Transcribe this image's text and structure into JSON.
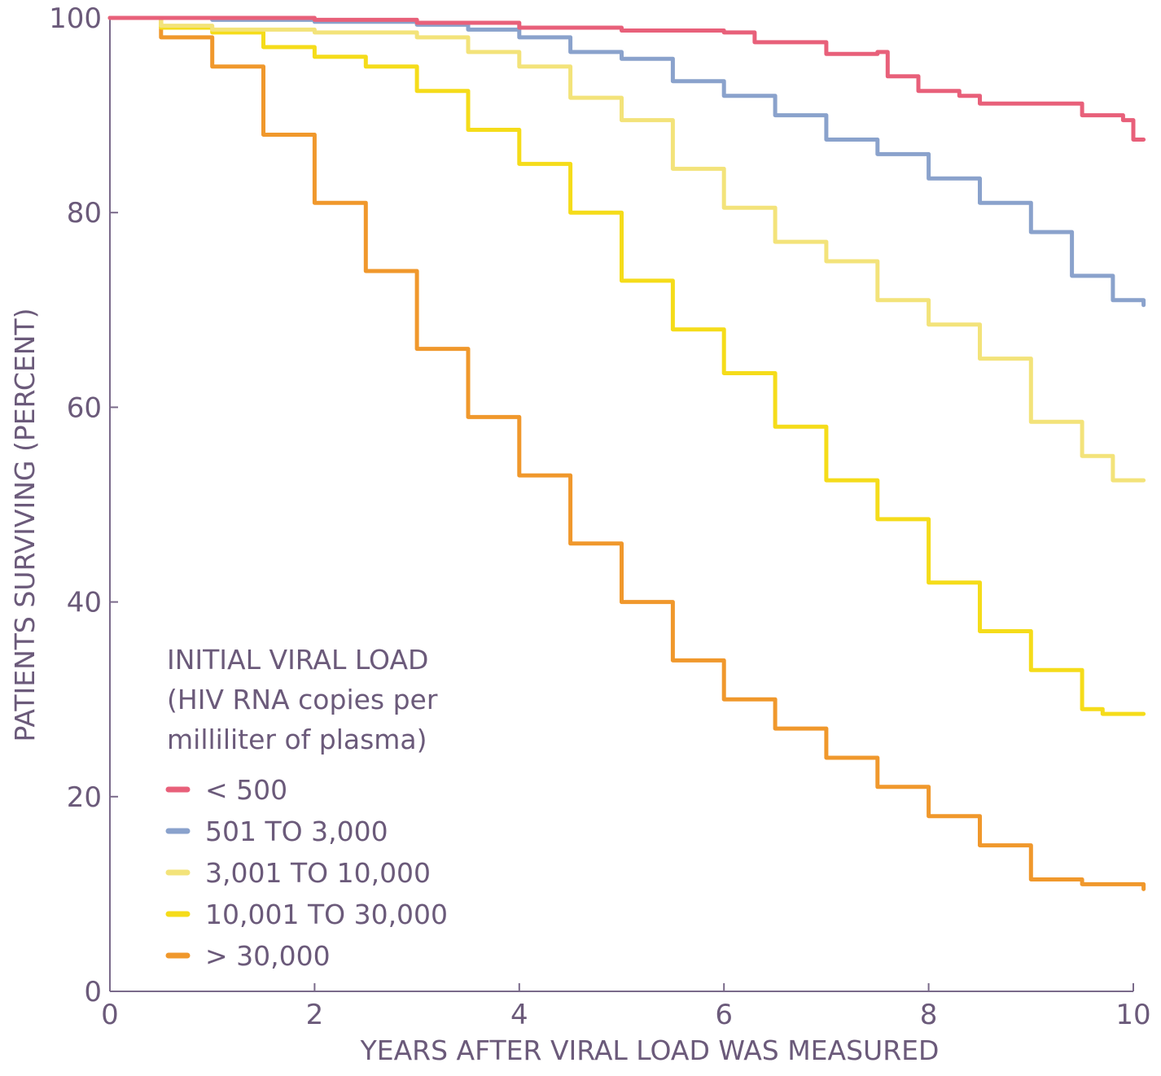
{
  "chart_data": {
    "type": "line",
    "xlabel": "YEARS AFTER VIRAL LOAD WAS MEASURED",
    "ylabel": "PATIENTS SURVIVING (PERCENT)",
    "xlim": [
      0,
      10
    ],
    "ylim": [
      0,
      100
    ],
    "x_ticks": [
      "0",
      "2",
      "4",
      "6",
      "8",
      "10"
    ],
    "y_ticks": [
      "0",
      "20",
      "40",
      "60",
      "80",
      "100"
    ],
    "grid": false,
    "legend": {
      "placement": "bottom-left",
      "title_lines": [
        "INITIAL VIRAL LOAD",
        "(HIV RNA copies per",
        "milliliter of plasma)"
      ]
    },
    "series": [
      {
        "name": "< 500",
        "color": "#e8607a",
        "points": [
          [
            0,
            100
          ],
          [
            1,
            100
          ],
          [
            2,
            99.8
          ],
          [
            3,
            99.5
          ],
          [
            4,
            99
          ],
          [
            5,
            98.7
          ],
          [
            6,
            98.5
          ],
          [
            6.3,
            97.5
          ],
          [
            7,
            96.3
          ],
          [
            7.5,
            96.5
          ],
          [
            7.6,
            94
          ],
          [
            7.9,
            92.5
          ],
          [
            8.3,
            92
          ],
          [
            8.5,
            91.2
          ],
          [
            9,
            91.2
          ],
          [
            9.4,
            91.2
          ],
          [
            9.5,
            90
          ],
          [
            9.9,
            89.5
          ],
          [
            10,
            87.5
          ],
          [
            10.1,
            87.5
          ]
        ]
      },
      {
        "name": "501 TO 3,000",
        "color": "#8aa2cc",
        "points": [
          [
            0,
            100
          ],
          [
            1,
            99.8
          ],
          [
            2,
            99.6
          ],
          [
            3,
            99.3
          ],
          [
            3.5,
            98.8
          ],
          [
            4,
            98
          ],
          [
            4.5,
            96.5
          ],
          [
            5,
            95.8
          ],
          [
            5.5,
            93.5
          ],
          [
            6,
            92
          ],
          [
            6.5,
            90
          ],
          [
            7,
            87.5
          ],
          [
            7.5,
            86
          ],
          [
            8,
            83.5
          ],
          [
            8.5,
            81
          ],
          [
            9,
            78
          ],
          [
            9.4,
            73.5
          ],
          [
            9.8,
            71
          ],
          [
            10.1,
            70.5
          ]
        ]
      },
      {
        "name": "3,001 TO 10,000",
        "color": "#f3e37a",
        "points": [
          [
            0,
            100
          ],
          [
            0.5,
            99.2
          ],
          [
            1,
            98.8
          ],
          [
            2,
            98.5
          ],
          [
            3,
            98
          ],
          [
            3.5,
            96.5
          ],
          [
            4,
            95
          ],
          [
            4.5,
            91.8
          ],
          [
            5,
            89.5
          ],
          [
            5.5,
            84.5
          ],
          [
            6,
            80.5
          ],
          [
            6.5,
            77
          ],
          [
            7,
            75
          ],
          [
            7.5,
            71
          ],
          [
            8,
            68.5
          ],
          [
            8.5,
            65
          ],
          [
            9,
            58.5
          ],
          [
            9.5,
            55
          ],
          [
            9.8,
            52.5
          ],
          [
            10.1,
            52.5
          ]
        ]
      },
      {
        "name": "10,001 TO 30,000",
        "color": "#f5dc1a",
        "points": [
          [
            0,
            100
          ],
          [
            0.5,
            99
          ],
          [
            1,
            98.5
          ],
          [
            1.5,
            97
          ],
          [
            2,
            96
          ],
          [
            2.5,
            95
          ],
          [
            3,
            92.5
          ],
          [
            3.5,
            88.5
          ],
          [
            4,
            85
          ],
          [
            4.5,
            80
          ],
          [
            5,
            73
          ],
          [
            5.5,
            68
          ],
          [
            6,
            63.5
          ],
          [
            6.5,
            58
          ],
          [
            7,
            52.5
          ],
          [
            7.5,
            48.5
          ],
          [
            8,
            42
          ],
          [
            8.5,
            37
          ],
          [
            9,
            33
          ],
          [
            9.5,
            29
          ],
          [
            9.7,
            28.5
          ],
          [
            10.1,
            28.5
          ]
        ]
      },
      {
        "name": "> 30,000",
        "color": "#f0982c",
        "points": [
          [
            0,
            100
          ],
          [
            0.5,
            98
          ],
          [
            1,
            95
          ],
          [
            1.5,
            88
          ],
          [
            2,
            81
          ],
          [
            2.5,
            74
          ],
          [
            3,
            66
          ],
          [
            3.5,
            59
          ],
          [
            4,
            53
          ],
          [
            4.5,
            46
          ],
          [
            5,
            40
          ],
          [
            5.5,
            34
          ],
          [
            6,
            30
          ],
          [
            6.5,
            27
          ],
          [
            7,
            24
          ],
          [
            7.5,
            21
          ],
          [
            8,
            18
          ],
          [
            8.5,
            15
          ],
          [
            9,
            11.5
          ],
          [
            9.5,
            11
          ],
          [
            10.1,
            10.5
          ]
        ]
      }
    ]
  }
}
